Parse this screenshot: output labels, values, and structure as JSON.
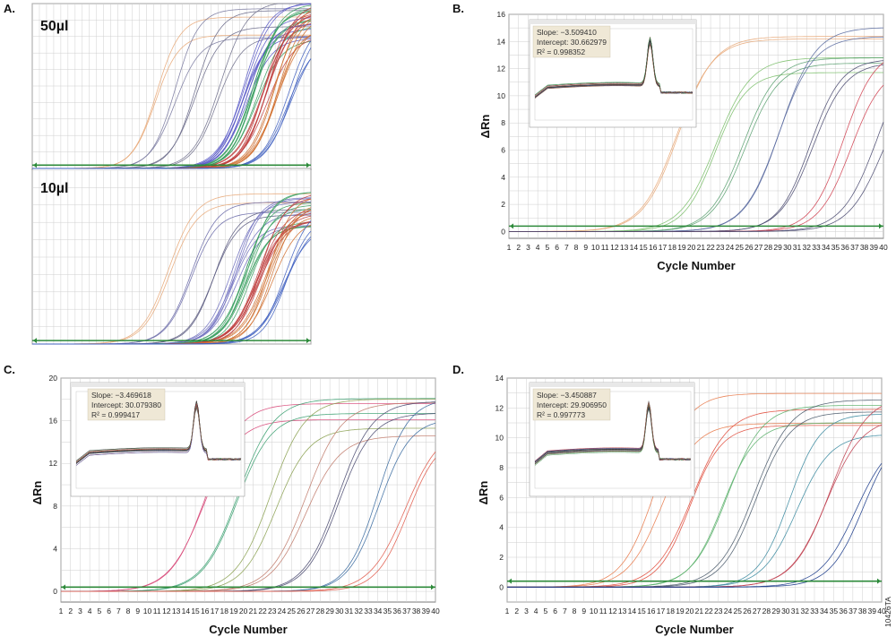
{
  "figure_id": "10426TA",
  "panels": [
    {
      "id": "A",
      "label": "A.",
      "sublabels": [
        "50µl",
        "10µl"
      ]
    },
    {
      "id": "B",
      "label": "B.",
      "inset": {
        "slope": "Slope: −3.509410",
        "intercept": "Intercept: 30.662979",
        "r2": "R² = 0.998352"
      }
    },
    {
      "id": "C",
      "label": "C.",
      "inset": {
        "slope": "Slope: −3.469618",
        "intercept": "Intercept: 30.079380",
        "r2": "R² = 0.999417"
      }
    },
    {
      "id": "D",
      "label": "D.",
      "inset": {
        "slope": "Slope: −3.450887",
        "intercept": "Intercept: 29.906950",
        "r2": "R² = 0.997773"
      }
    }
  ],
  "chart_data": [
    {
      "panel": "A-top",
      "type": "line",
      "title": "50µl",
      "xlim": [
        1,
        40
      ],
      "ylim": [
        0,
        15
      ],
      "grid": true,
      "threshold": 0.3,
      "plateau": 15,
      "curve_groups": [
        {
          "ct": 17,
          "count": 2,
          "color": "#e8a878"
        },
        {
          "ct": 20,
          "count": 2,
          "color": "#7a7aa0"
        },
        {
          "ct": 23,
          "count": 2,
          "color": "#6a6a8a"
        },
        {
          "ct": 26,
          "count": 2,
          "color": "#70708c"
        },
        {
          "ct": 29.5,
          "count": 8,
          "color": "#5a5ac8"
        },
        {
          "ct": 31,
          "count": 8,
          "color": "#3aa060"
        },
        {
          "ct": 32.5,
          "count": 8,
          "color": "#c04040"
        },
        {
          "ct": 34,
          "count": 6,
          "color": "#d07030"
        },
        {
          "ct": 36,
          "count": 4,
          "color": "#4060c0"
        }
      ]
    },
    {
      "panel": "A-bottom",
      "type": "line",
      "title": "10µl",
      "xlim": [
        1,
        40
      ],
      "ylim": [
        0,
        15
      ],
      "grid": true,
      "threshold": 0.3,
      "plateau": 13,
      "curve_groups": [
        {
          "ct": 19,
          "count": 2,
          "color": "#e8a878"
        },
        {
          "ct": 22,
          "count": 2,
          "color": "#6a6aa8"
        },
        {
          "ct": 25,
          "count": 2,
          "color": "#5a5a80"
        },
        {
          "ct": 28,
          "count": 6,
          "color": "#7070c0"
        },
        {
          "ct": 30,
          "count": 8,
          "color": "#3aa060"
        },
        {
          "ct": 31.5,
          "count": 8,
          "color": "#c04040"
        },
        {
          "ct": 33,
          "count": 6,
          "color": "#d07030"
        },
        {
          "ct": 35,
          "count": 4,
          "color": "#4060c0"
        }
      ]
    },
    {
      "panel": "B",
      "type": "line",
      "xlabel": "Cycle Number",
      "ylabel": "ΔRn",
      "xlim": [
        1,
        40
      ],
      "ylim": [
        -0.5,
        16
      ],
      "xticks": [
        1,
        2,
        3,
        4,
        5,
        6,
        7,
        8,
        9,
        10,
        11,
        12,
        13,
        14,
        15,
        16,
        17,
        18,
        19,
        20,
        21,
        22,
        23,
        24,
        25,
        26,
        27,
        28,
        29,
        30,
        31,
        32,
        33,
        34,
        35,
        36,
        37,
        38,
        39,
        40
      ],
      "yticks": [
        0,
        2,
        4,
        6,
        8,
        10,
        12,
        14,
        16
      ],
      "grid": true,
      "threshold": 0.4,
      "curve_groups": [
        {
          "ct": 17.5,
          "count": 2,
          "color": "#e8a878",
          "plateau": 15
        },
        {
          "ct": 21,
          "count": 2,
          "color": "#7bbf6a",
          "plateau": 15
        },
        {
          "ct": 24.5,
          "count": 2,
          "color": "#5aa070",
          "plateau": 15
        },
        {
          "ct": 28,
          "count": 2,
          "color": "#5a6aa0",
          "plateau": 15
        },
        {
          "ct": 31.5,
          "count": 2,
          "color": "#4a4a70",
          "plateau": 15
        },
        {
          "ct": 35,
          "count": 2,
          "color": "#d04050",
          "plateau": 15
        },
        {
          "ct": 38.5,
          "count": 2,
          "color": "#4a4a70",
          "plateau": 15
        }
      ]
    },
    {
      "panel": "C",
      "type": "line",
      "xlabel": "Cycle Number",
      "ylabel": "ΔRn",
      "xlim": [
        1,
        40
      ],
      "ylim": [
        -1,
        20
      ],
      "xticks": [
        1,
        2,
        3,
        4,
        5,
        6,
        7,
        8,
        9,
        10,
        11,
        12,
        13,
        14,
        15,
        16,
        17,
        18,
        19,
        20,
        21,
        22,
        23,
        24,
        25,
        26,
        27,
        28,
        29,
        30,
        31,
        32,
        33,
        34,
        35,
        36,
        37,
        38,
        39,
        40
      ],
      "yticks": [
        0,
        4,
        8,
        12,
        16,
        20
      ],
      "grid": true,
      "threshold": 0.4,
      "curve_groups": [
        {
          "ct": 15,
          "count": 2,
          "color": "#d84a7a",
          "plateau": 18
        },
        {
          "ct": 18.5,
          "count": 2,
          "color": "#3aa070",
          "plateau": 18
        },
        {
          "ct": 22,
          "count": 2,
          "color": "#8aa050",
          "plateau": 18
        },
        {
          "ct": 25.5,
          "count": 2,
          "color": "#c07a6a",
          "plateau": 18
        },
        {
          "ct": 29,
          "count": 2,
          "color": "#4a4a70",
          "plateau": 18
        },
        {
          "ct": 32.5,
          "count": 2,
          "color": "#3a6aa0",
          "plateau": 18
        },
        {
          "ct": 36,
          "count": 2,
          "color": "#e05a4a",
          "plateau": 18
        }
      ]
    },
    {
      "panel": "D",
      "type": "line",
      "xlabel": "Cycle Number",
      "ylabel": "ΔRn",
      "xlim": [
        1,
        40
      ],
      "ylim": [
        -1,
        14
      ],
      "xticks": [
        1,
        2,
        3,
        4,
        5,
        6,
        7,
        8,
        9,
        10,
        11,
        12,
        13,
        14,
        15,
        16,
        17,
        18,
        19,
        20,
        21,
        22,
        23,
        24,
        25,
        26,
        27,
        28,
        29,
        30,
        31,
        32,
        33,
        34,
        35,
        36,
        37,
        38,
        39,
        40
      ],
      "yticks": [
        0,
        2,
        4,
        6,
        8,
        10,
        12,
        14
      ],
      "grid": true,
      "threshold": 0.4,
      "curve_groups": [
        {
          "ct": 15.5,
          "count": 2,
          "color": "#e87a4a",
          "plateau": 13
        },
        {
          "ct": 19,
          "count": 2,
          "color": "#e04a3a",
          "plateau": 13
        },
        {
          "ct": 22.5,
          "count": 2,
          "color": "#5ab06a",
          "plateau": 13
        },
        {
          "ct": 26,
          "count": 2,
          "color": "#4a5a6a",
          "plateau": 13
        },
        {
          "ct": 29.5,
          "count": 2,
          "color": "#3a8aa0",
          "plateau": 13
        },
        {
          "ct": 33,
          "count": 2,
          "color": "#c04050",
          "plateau": 13
        },
        {
          "ct": 36.5,
          "count": 2,
          "color": "#1a3a8a",
          "plateau": 13
        }
      ]
    }
  ]
}
